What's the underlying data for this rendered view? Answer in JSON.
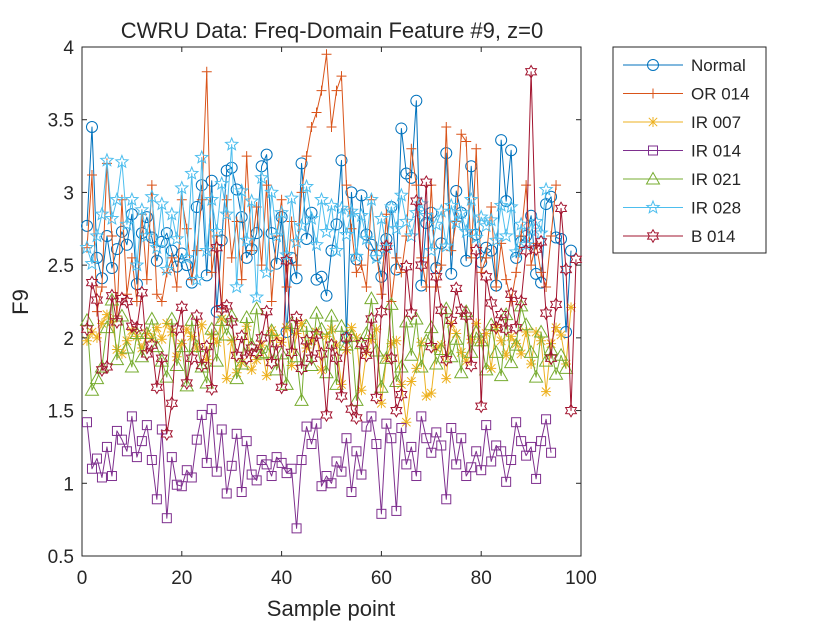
{
  "chart_data": {
    "type": "line",
    "title": "CWRU Data: Freq-Domain Feature #9, z=0",
    "xlabel": "Sample point",
    "ylabel": "F9",
    "xlim": [
      0,
      100
    ],
    "ylim": [
      0.5,
      4
    ],
    "xticks": [
      "0",
      "20",
      "40",
      "60",
      "80",
      "100"
    ],
    "yticks": [
      "0.5",
      "1",
      "1.5",
      "2",
      "2.5",
      "3",
      "3.5",
      "4"
    ],
    "grid": false,
    "legend_position": "outside-top-right",
    "series": [
      {
        "name": "Normal",
        "color": "#0072BD",
        "marker": "circle",
        "values": [
          2.77,
          3.45,
          2.55,
          2.41,
          2.7,
          2.48,
          2.61,
          2.73,
          2.64,
          2.85,
          2.37,
          2.72,
          2.83,
          2.69,
          2.53,
          2.66,
          2.72,
          2.6,
          2.49,
          2.58,
          2.5,
          2.38,
          2.9,
          3.05,
          2.43,
          3.08,
          2.18,
          2.67,
          3.15,
          3.17,
          3.02,
          2.83,
          2.55,
          2.61,
          2.72,
          3.18,
          3.26,
          2.72,
          2.51,
          2.83,
          2.04,
          2.55,
          2.41,
          3.2,
          2.68,
          2.86,
          2.4,
          2.42,
          2.29,
          2.6,
          2.78,
          3.22,
          2.0,
          3.0,
          2.54,
          2.98,
          2.71,
          2.64,
          2.57,
          2.42,
          2.68,
          2.9,
          2.47,
          3.44,
          3.13,
          3.1,
          3.63,
          2.36,
          2.79,
          2.86,
          2.48,
          2.65,
          3.27,
          2.44,
          3.01,
          2.86,
          2.53,
          3.18,
          2.71,
          2.52,
          2.62,
          2.6,
          2.36,
          3.36,
          2.94,
          3.29,
          2.55,
          2.66,
          2.7,
          2.84,
          2.44,
          2.38,
          2.92,
          2.97,
          2.69,
          2.68,
          2.04,
          2.6
        ]
      },
      {
        "name": "OR 014",
        "color": "#D95319",
        "marker": "plus",
        "values": [
          2.62,
          3.12,
          2.18,
          2.35,
          3.2,
          2.7,
          2.15,
          2.95,
          2.3,
          2.55,
          2.25,
          2.85,
          2.4,
          3.05,
          2.3,
          2.25,
          2.45,
          2.55,
          2.35,
          2.95,
          2.75,
          2.4,
          2.6,
          2.95,
          3.83,
          2.45,
          2.7,
          2.2,
          2.95,
          2.55,
          2.8,
          2.4,
          3.25,
          2.6,
          2.9,
          2.5,
          3.05,
          2.25,
          2.7,
          2.95,
          2.35,
          2.8,
          2.5,
          3.0,
          3.25,
          3.45,
          3.55,
          3.7,
          3.95,
          3.45,
          3.7,
          3.8,
          3.05,
          2.75,
          2.45,
          2.5,
          2.35,
          2.95,
          2.6,
          2.3,
          2.85,
          2.25,
          2.55,
          2.45,
          2.7,
          3.3,
          3.05,
          2.55,
          2.35,
          3.05,
          2.35,
          2.5,
          3.45,
          2.6,
          2.8,
          3.4,
          3.35,
          2.55,
          3.3,
          2.45,
          2.55,
          2.9,
          2.35,
          2.65,
          2.4,
          2.25,
          2.45,
          2.7,
          3.05,
          2.5,
          2.65,
          2.45,
          2.35,
          2.7,
          3.05
        ]
      },
      {
        "name": "IR 007",
        "color": "#EDB120",
        "marker": "asterisk",
        "values": [
          1.98,
          2.04,
          2.0,
          2.1,
          2.16,
          2.11,
          1.92,
          1.89,
          1.98,
          2.05,
          2.01,
          1.93,
          2.03,
          2.0,
          2.07,
          1.99,
          2.1,
          2.04,
          1.87,
          1.96,
          2.06,
          2.01,
          1.93,
          2.09,
          1.85,
          2.02,
          1.97,
          2.13,
          1.72,
          1.98,
          1.76,
          1.83,
          2.08,
          1.78,
          1.85,
          1.95,
          1.74,
          2.05,
          2.0,
          1.97,
          2.07,
          1.81,
          2.03,
          2.1,
          1.93,
          1.98,
          2.04,
          1.78,
          2.01,
          2.06,
          1.95,
          1.68,
          1.92,
          2.07,
          2.0,
          1.64,
          1.9,
          1.99,
          2.06,
          1.55,
          1.86,
          1.96,
          1.98,
          1.68,
          1.42,
          1.7,
          1.79,
          1.97,
          1.6,
          1.62,
          1.93,
          1.95,
          1.72,
          2.1,
          2.03,
          1.9,
          1.84,
          1.99,
          2.1,
          1.97,
          2.03,
          1.79,
          2.07,
          1.98,
          1.88,
          2.01,
          1.96,
          1.89,
          2.04,
          1.82,
          2.04,
          1.98,
          1.63,
          1.96,
          2.07,
          2.02,
          1.82,
          2.21
        ]
      },
      {
        "name": "IR 014",
        "color": "#7E2F8E",
        "marker": "square",
        "values": [
          1.42,
          1.1,
          1.17,
          1.04,
          1.25,
          1.05,
          1.36,
          1.3,
          1.22,
          1.46,
          1.18,
          1.29,
          1.4,
          1.16,
          0.89,
          1.37,
          0.76,
          1.18,
          0.99,
          0.98,
          1.09,
          1.04,
          1.3,
          1.47,
          1.14,
          1.51,
          1.08,
          1.37,
          0.93,
          1.12,
          1.34,
          0.94,
          1.29,
          1.06,
          1.02,
          1.16,
          1.13,
          1.05,
          1.18,
          1.14,
          1.07,
          1.1,
          0.69,
          1.16,
          1.39,
          1.27,
          1.41,
          0.98,
          1.05,
          1.0,
          1.15,
          1.08,
          1.31,
          0.94,
          1.22,
          1.06,
          1.39,
          1.46,
          1.27,
          0.79,
          1.41,
          1.31,
          0.81,
          1.38,
          1.13,
          1.25,
          1.05,
          1.46,
          1.31,
          1.21,
          1.35,
          1.26,
          0.89,
          1.38,
          1.13,
          1.31,
          1.05,
          1.11,
          1.22,
          1.09,
          1.4,
          1.15,
          1.26,
          1.22,
          1.01,
          1.16,
          1.42,
          1.29,
          1.19,
          1.25,
          1.03,
          1.29,
          1.44,
          1.21
        ]
      },
      {
        "name": "IR 021",
        "color": "#77AC30",
        "marker": "triangle",
        "values": [
          2.12,
          1.64,
          1.72,
          1.8,
          2.07,
          2.26,
          1.85,
          2.15,
          1.93,
          1.8,
          2.03,
          1.87,
          2.03,
          2.13,
          1.94,
          1.84,
          1.73,
          2.13,
          1.81,
          1.94,
          1.67,
          2.12,
          1.94,
          1.8,
          1.69,
          2.06,
          1.84,
          2.12,
          2.02,
          2.15,
          1.72,
          1.82,
          2.14,
          1.95,
          2.2,
          1.89,
          1.9,
          2.05,
          1.78,
          1.89,
          1.68,
          2.1,
          1.87,
          1.57,
          2.08,
          1.81,
          2.17,
          2.06,
          1.76,
          2.15,
          1.68,
          2.08,
          1.95,
          2.01,
          1.57,
          1.96,
          2.03,
          2.27,
          1.91,
          1.66,
          1.86,
          2.23,
          1.7,
          1.8,
          2.11,
          1.88,
          2.13,
          1.8,
          1.98,
          2.07,
          1.82,
          1.92,
          2.2,
          1.87,
          1.99,
          1.76,
          2.18,
          1.9,
          2.04,
          1.98,
          1.78,
          2.09,
          1.9,
          1.74,
          2.16,
          1.83,
          1.95,
          2.22,
          2.09,
          1.9,
          1.73,
          2.04,
          1.84,
          1.92,
          1.75,
          1.88,
          1.79
        ]
      },
      {
        "name": "IR 028",
        "color": "#4DBEEE",
        "marker": "star",
        "values": [
          2.62,
          2.51,
          2.7,
          2.85,
          3.22,
          2.82,
          2.95,
          3.21,
          2.78,
          2.95,
          2.5,
          2.88,
          2.7,
          2.97,
          2.62,
          2.92,
          2.47,
          2.85,
          2.68,
          3.03,
          2.55,
          3.13,
          2.4,
          3.24,
          2.6,
          2.95,
          2.73,
          3.06,
          2.85,
          3.33,
          2.35,
          3.01,
          2.67,
          2.94,
          2.28,
          3.1,
          2.45,
          3.0,
          2.7,
          2.86,
          2.57,
          2.96,
          2.66,
          2.77,
          3.04,
          2.82,
          2.64,
          2.95,
          2.73,
          2.91,
          2.6,
          2.89,
          2.71,
          2.87,
          2.56,
          2.84,
          2.68,
          2.95,
          2.55,
          2.82,
          2.62,
          2.9,
          2.75,
          2.98,
          2.8,
          2.7,
          2.86,
          2.92,
          2.84,
          2.6,
          2.78,
          2.87,
          2.63,
          2.91,
          2.79,
          2.86,
          2.73,
          2.95,
          2.69,
          2.83,
          2.77,
          2.81,
          2.67,
          2.91,
          2.7,
          2.9,
          2.59,
          2.78,
          2.64,
          2.74,
          2.8,
          2.72,
          3.02
        ]
      },
      {
        "name": "B 014",
        "color": "#A2142F",
        "marker": "hexagram",
        "values": [
          2.06,
          2.38,
          2.26,
          1.78,
          1.8,
          2.29,
          2.11,
          2.27,
          2.25,
          2.08,
          2.07,
          2.31,
          1.89,
          1.95,
          1.66,
          1.86,
          1.34,
          1.55,
          2.06,
          2.21,
          1.69,
          1.86,
          2.15,
          1.81,
          1.94,
          1.65,
          2.62,
          2.2,
          2.22,
          2.11,
          1.88,
          2.01,
          1.86,
          1.93,
          1.9,
          2.0,
          2.18,
          1.83,
          1.96,
          1.66,
          2.53,
          1.9,
          2.14,
          1.79,
          1.98,
          1.86,
          2.02,
          1.89,
          1.47,
          1.95,
          1.86,
          1.6,
          2.0,
          1.51,
          1.45,
          1.96,
          1.88,
          2.13,
          1.59,
          2.18,
          2.63,
          1.86,
          1.5,
          1.61,
          2.49,
          2.17,
          2.94,
          2.5,
          3.07,
          1.94,
          2.42,
          2.19,
          1.85,
          2.12,
          2.34,
          2.19,
          2.15,
          1.81,
          2.6,
          1.53,
          2.42,
          2.24,
          2.07,
          2.16,
          2.06,
          2.3,
          2.07,
          2.25,
          2.6,
          3.83,
          2.61,
          2.66,
          2.17,
          1.86,
          2.23,
          2.89,
          2.47,
          1.5,
          2.54
        ]
      }
    ]
  }
}
